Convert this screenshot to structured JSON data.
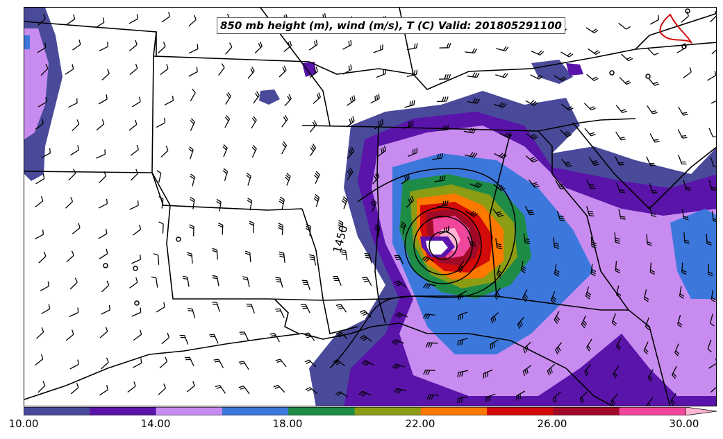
{
  "title": "850 mb height (m), wind (m/s), T (C) Valid: 201805291100",
  "contour_label": "1450",
  "colorbar": {
    "min": 10.0,
    "max": 30.0,
    "step": 2.0,
    "extend": "max",
    "colors": [
      "#4a4a9a",
      "#5a14aa",
      "#c88cf0",
      "#3c78dc",
      "#1e8c46",
      "#8c9c14",
      "#ff7800",
      "#d20a0a",
      "#a00a28",
      "#f0469b",
      "#ffb4d2"
    ],
    "tick_labels": [
      "10.00",
      "14.00",
      "18.00",
      "22.00",
      "26.00",
      "30.00"
    ]
  },
  "legend_icons": {
    "wind_barb": "wind-barb-icon",
    "height_contour": "height-contour-line"
  }
}
